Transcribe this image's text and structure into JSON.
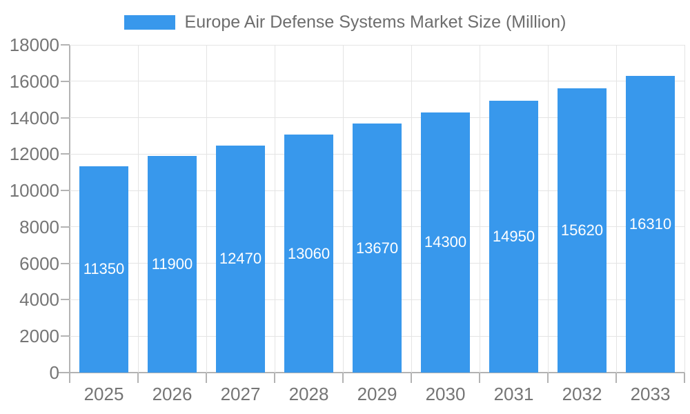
{
  "chart_data": {
    "type": "bar",
    "title": "Europe Air Defense Systems Market Size (Million)",
    "categories": [
      "2025",
      "2026",
      "2027",
      "2028",
      "2029",
      "2030",
      "2031",
      "2032",
      "2033"
    ],
    "values": [
      11350,
      11900,
      12470,
      13060,
      13670,
      14300,
      14950,
      15620,
      16310
    ],
    "value_labels": [
      "11350",
      "11900",
      "12470",
      "13060",
      "13670",
      "14300",
      "14950",
      "15620",
      "16310"
    ],
    "ylim": [
      0,
      18000
    ],
    "ytick_step": 2000,
    "yticks": [
      0,
      2000,
      4000,
      6000,
      8000,
      10000,
      12000,
      14000,
      16000,
      18000
    ],
    "ytick_labels": [
      "0",
      "2000",
      "4000",
      "6000",
      "8000",
      "10000",
      "12000",
      "14000",
      "16000",
      "18000"
    ],
    "legend_position": "top",
    "grid": true,
    "colors": {
      "bar": "#3898EC",
      "value_label": "#ffffff",
      "axis_text": "#757575",
      "title_text": "#6d6d6d",
      "grid_line": "#e4e4e4",
      "axis_line": "#b3b3b3",
      "background": "#ffffff"
    }
  }
}
